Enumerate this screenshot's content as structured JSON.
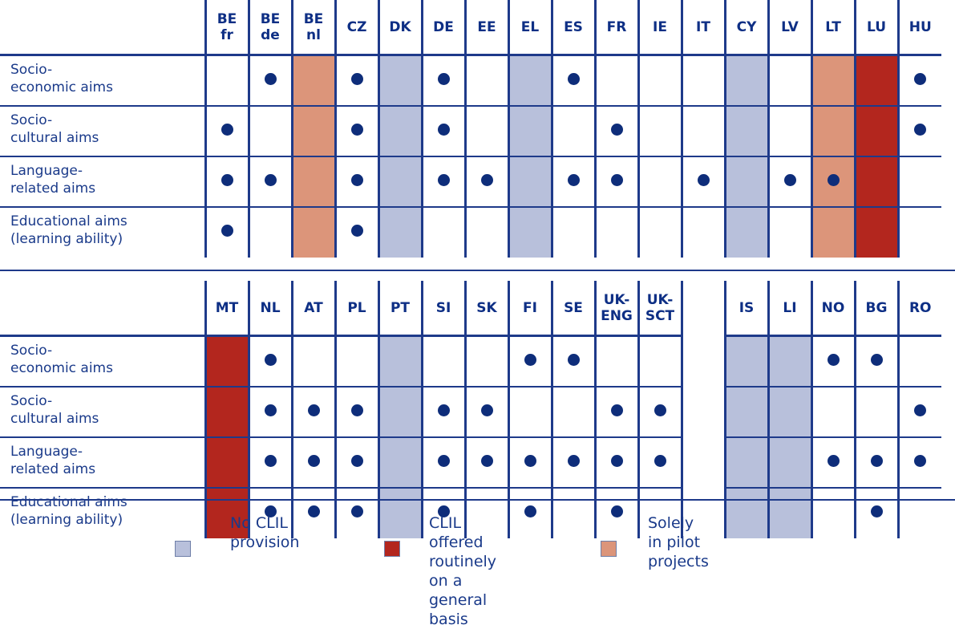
{
  "colors": {
    "no_clil": "#b8c0db",
    "routine": "#b3261e",
    "pilot": "#dc957a",
    "dot": "#0e2d7a",
    "text": "#1a3a8a"
  },
  "chart_data": [
    {
      "type": "table",
      "columns": [
        {
          "code": "BE\nfr",
          "status": ""
        },
        {
          "code": "BE\nde",
          "status": ""
        },
        {
          "code": "BE\nnl",
          "status": "pilot"
        },
        {
          "code": "CZ",
          "status": ""
        },
        {
          "code": "DK",
          "status": "no_clil"
        },
        {
          "code": "DE",
          "status": ""
        },
        {
          "code": "EE",
          "status": ""
        },
        {
          "code": "EL",
          "status": "no_clil"
        },
        {
          "code": "ES",
          "status": ""
        },
        {
          "code": "FR",
          "status": ""
        },
        {
          "code": "IE",
          "status": ""
        },
        {
          "code": "IT",
          "status": ""
        },
        {
          "code": "CY",
          "status": "no_clil"
        },
        {
          "code": "LV",
          "status": ""
        },
        {
          "code": "LT",
          "status": "pilot"
        },
        {
          "code": "LU",
          "status": "routine"
        },
        {
          "code": "HU",
          "status": ""
        }
      ],
      "rows": [
        {
          "label": "Socio-\neconomic aims",
          "marks": [
            0,
            1,
            0,
            1,
            0,
            1,
            0,
            0,
            1,
            0,
            0,
            0,
            0,
            0,
            0,
            0,
            1
          ]
        },
        {
          "label": "Socio-\ncultural aims",
          "marks": [
            1,
            0,
            0,
            1,
            0,
            1,
            0,
            0,
            0,
            1,
            0,
            0,
            0,
            0,
            0,
            0,
            1
          ]
        },
        {
          "label": "Language-\nrelated aims",
          "marks": [
            1,
            1,
            0,
            1,
            0,
            1,
            1,
            0,
            1,
            1,
            0,
            1,
            0,
            1,
            1,
            0,
            0
          ]
        },
        {
          "label": "Educational aims\n(learning ability)",
          "marks": [
            1,
            0,
            0,
            1,
            0,
            0,
            0,
            0,
            0,
            0,
            0,
            0,
            0,
            0,
            0,
            0,
            0
          ]
        }
      ]
    },
    {
      "type": "table",
      "columns": [
        {
          "code": "MT",
          "status": "routine"
        },
        {
          "code": "NL",
          "status": ""
        },
        {
          "code": "AT",
          "status": ""
        },
        {
          "code": "PL",
          "status": ""
        },
        {
          "code": "PT",
          "status": "no_clil"
        },
        {
          "code": "SI",
          "status": ""
        },
        {
          "code": "SK",
          "status": ""
        },
        {
          "code": "FI",
          "status": ""
        },
        {
          "code": "SE",
          "status": ""
        },
        {
          "code": "UK-\nENG",
          "status": ""
        },
        {
          "code": "UK-\nSCT",
          "status": ""
        },
        {
          "code": "",
          "status": "gap"
        },
        {
          "code": "IS",
          "status": "no_clil"
        },
        {
          "code": "LI",
          "status": "no_clil"
        },
        {
          "code": "NO",
          "status": ""
        },
        {
          "code": "BG",
          "status": ""
        },
        {
          "code": "RO",
          "status": ""
        }
      ],
      "rows": [
        {
          "label": "Socio-\neconomic aims",
          "marks": [
            0,
            1,
            0,
            0,
            0,
            0,
            0,
            1,
            1,
            0,
            0,
            0,
            0,
            0,
            1,
            1,
            0
          ]
        },
        {
          "label": "Socio-\ncultural aims",
          "marks": [
            0,
            1,
            1,
            1,
            0,
            1,
            1,
            0,
            0,
            1,
            1,
            0,
            0,
            0,
            0,
            0,
            1
          ]
        },
        {
          "label": "Language-\nrelated aims",
          "marks": [
            0,
            1,
            1,
            1,
            0,
            1,
            1,
            1,
            1,
            1,
            1,
            0,
            0,
            0,
            1,
            1,
            1
          ]
        },
        {
          "label": "Educational aims\n(learning ability)",
          "marks": [
            0,
            1,
            1,
            1,
            0,
            1,
            0,
            1,
            0,
            1,
            0,
            0,
            0,
            0,
            0,
            1,
            0
          ]
        }
      ]
    }
  ],
  "legend": [
    {
      "key": "no_clil",
      "label": "No CLIL\nprovision"
    },
    {
      "key": "routine",
      "label": "CLIL offered routinely\non a general basis"
    },
    {
      "key": "pilot",
      "label": "Solely\nin pilot projects"
    }
  ]
}
